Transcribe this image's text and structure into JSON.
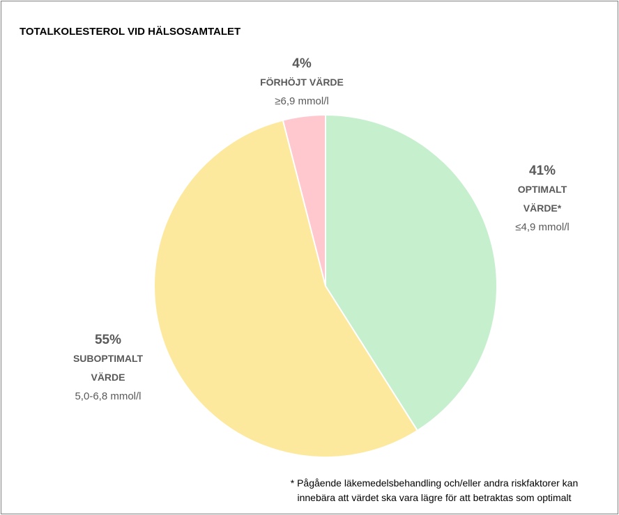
{
  "chart_data": {
    "type": "pie",
    "title": "TOTALKOLESTEROL VID HÄLSOSAMTALET",
    "categories": [
      "OPTIMALT VÄRDE*",
      "SUBOPTIMALT VÄRDE",
      "FÖRHÖJT VÄRDE"
    ],
    "ranges": [
      "≤4,9 mmol/l",
      "5,0-6,8 mmol/l",
      "≥6,9 mmol/l"
    ],
    "values": [
      41,
      55,
      4
    ],
    "value_labels": [
      "41%",
      "55%",
      "4%"
    ],
    "colors": [
      "#c6efce",
      "#fde99e",
      "#ffc7ce"
    ],
    "footnote": [
      "* Pågående läkemedelsbehandling och/eller andra riskfaktorer kan",
      "innebära att värdet ska vara lägre för att betraktas som optimalt"
    ]
  }
}
